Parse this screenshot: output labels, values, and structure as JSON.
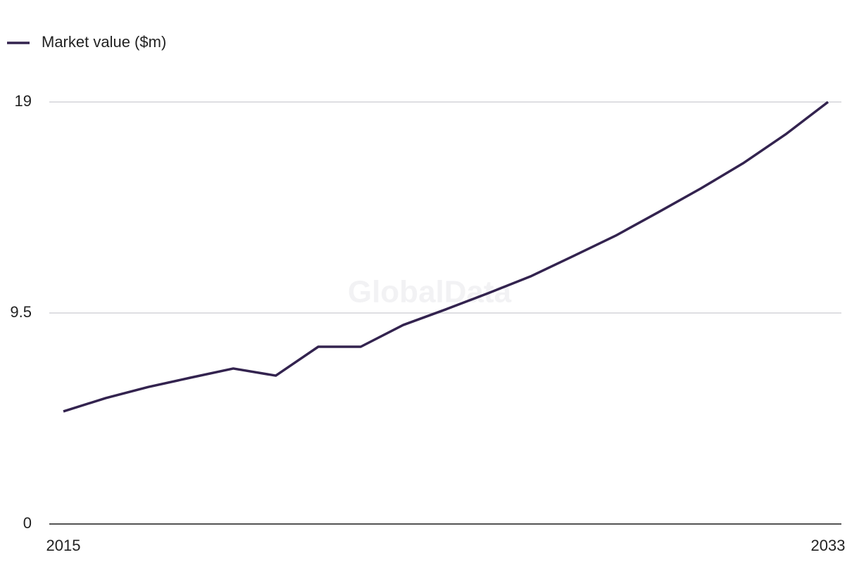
{
  "chart_data": {
    "type": "line",
    "watermark": "GlobalData",
    "x": [
      2015,
      2016,
      2017,
      2018,
      2019,
      2020,
      2021,
      2022,
      2023,
      2024,
      2025,
      2026,
      2027,
      2028,
      2029,
      2030,
      2031,
      2032,
      2033
    ],
    "series": [
      {
        "name": "Market value ($m)",
        "color": "#33234f",
        "values": [
          5.07,
          5.67,
          6.17,
          6.59,
          7.0,
          6.68,
          7.98,
          7.98,
          8.96,
          9.66,
          10.39,
          11.15,
          12.06,
          12.98,
          14.03,
          15.1,
          16.24,
          17.54,
          19
        ]
      }
    ],
    "xlim": [
      2015,
      2033
    ],
    "xticks": [
      2015,
      2033
    ],
    "ylim": [
      0,
      19
    ],
    "yticks": [
      0,
      9.5,
      19
    ],
    "grid": true,
    "legend": "top-left"
  }
}
